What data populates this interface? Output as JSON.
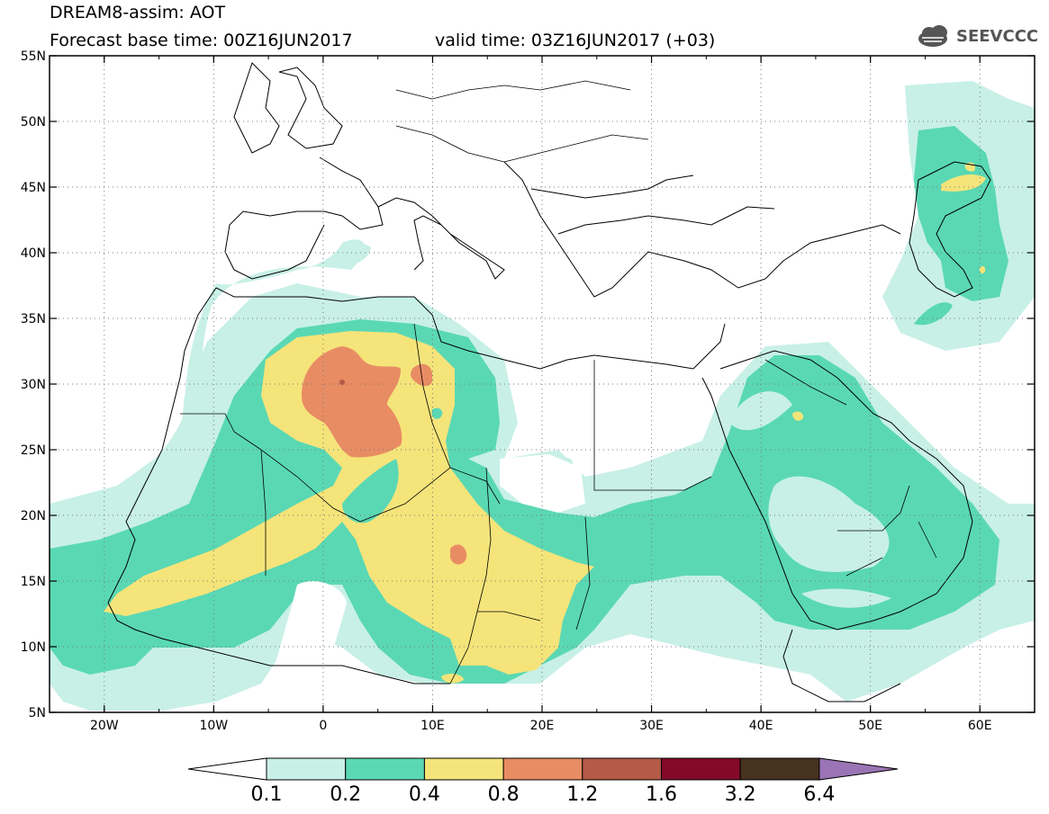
{
  "header": {
    "title": "DREAM8-assim: AOT",
    "base_time": "Forecast base time: 00Z16JUN2017",
    "valid_time": "valid time: 03Z16JUN2017 (+03)"
  },
  "logo": {
    "text": "SEEVCCC",
    "icon": "cloud-icon"
  },
  "map": {
    "lon_range": [
      -25,
      65
    ],
    "lat_range": [
      5,
      55
    ],
    "lon_ticks": [
      "20W",
      "10W",
      "0",
      "10E",
      "20E",
      "30E",
      "40E",
      "50E",
      "60E"
    ],
    "lat_ticks": [
      "5N",
      "10N",
      "15N",
      "20N",
      "25N",
      "30N",
      "35N",
      "40N",
      "45N",
      "50N",
      "55N"
    ],
    "grid": "dotted"
  },
  "colorbar": {
    "labels": [
      "0.1",
      "0.2",
      "0.4",
      "0.8",
      "1.2",
      "1.6",
      "3.2",
      "6.4"
    ],
    "colors": [
      "#ffffff",
      "#c8f0e6",
      "#5ad8b4",
      "#f5e47a",
      "#e88c64",
      "#b45a46",
      "#820a28",
      "#46321e",
      "#9a74b4"
    ]
  }
}
